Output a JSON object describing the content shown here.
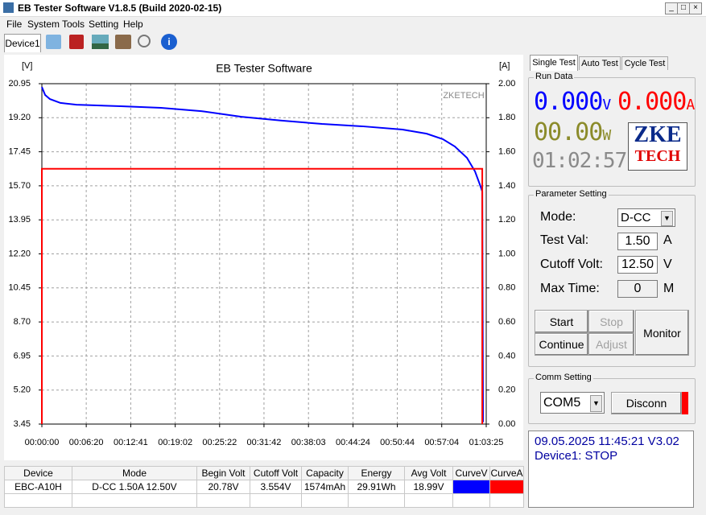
{
  "window": {
    "title": "EB Tester Software V1.8.5 (Build 2020-02-15)"
  },
  "menu": [
    "File",
    "System",
    "Tools",
    "Setting",
    "Help"
  ],
  "device_tab": "Device1",
  "chart_data": {
    "type": "line",
    "title": "EB Tester Software",
    "watermark": "ZKETECH",
    "y_label": "[V]",
    "y2_label": "[A]",
    "xlim": [
      0,
      3805
    ],
    "xticks": [
      {
        "value": 0,
        "label": "00:00:00"
      },
      {
        "value": 380,
        "label": "00:06:20"
      },
      {
        "value": 761,
        "label": "00:12:41"
      },
      {
        "value": 1142,
        "label": "00:19:02"
      },
      {
        "value": 1522,
        "label": "00:25:22"
      },
      {
        "value": 1902,
        "label": "00:31:42"
      },
      {
        "value": 2283,
        "label": "00:38:03"
      },
      {
        "value": 2664,
        "label": "00:44:24"
      },
      {
        "value": 3044,
        "label": "00:50:44"
      },
      {
        "value": 3424,
        "label": "00:57:04"
      },
      {
        "value": 3805,
        "label": "01:03:25"
      }
    ],
    "ylim": [
      3.45,
      20.95
    ],
    "yticks": [
      3.45,
      {
        "value": 5.2,
        "label": "5.20"
      },
      6.95,
      {
        "value": 8.7,
        "label": "8.70"
      },
      10.45,
      {
        "value": 12.2,
        "label": "12.20"
      },
      13.95,
      {
        "value": 15.7,
        "label": "15.70"
      },
      17.45,
      {
        "value": 19.2,
        "label": "19.20"
      },
      20.95
    ],
    "y2lim": [
      0,
      2
    ],
    "y2ticks": [
      {
        "value": 0,
        "label": "0.00"
      },
      {
        "value": 0.2,
        "label": "0.20"
      },
      {
        "value": 0.4,
        "label": "0.40"
      },
      {
        "value": 0.6,
        "label": "0.60"
      },
      {
        "value": 0.8,
        "label": "0.80"
      },
      {
        "value": 1,
        "label": "1.00"
      },
      {
        "value": 1.2,
        "label": "1.20"
      },
      {
        "value": 1.4,
        "label": "1.40"
      },
      {
        "value": 1.6,
        "label": "1.60"
      },
      {
        "value": 1.8,
        "label": "1.80"
      },
      {
        "value": 2,
        "label": "2.00"
      }
    ],
    "grid": true,
    "series": [
      {
        "color": "#0000ff",
        "x": [
          0,
          28,
          69,
          159,
          296,
          676,
          1020,
          1365,
          1709,
          2054,
          2399,
          2743,
          3088,
          3295,
          3433,
          3536,
          3640,
          3709,
          3757,
          3771,
          3778
        ],
        "values": [
          20.78,
          20.37,
          20.16,
          19.96,
          19.87,
          19.79,
          19.71,
          19.54,
          19.25,
          19.05,
          18.88,
          18.76,
          18.59,
          18.38,
          18.1,
          17.72,
          17.14,
          16.44,
          15.66,
          15.41,
          3.55
        ]
      },
      {
        "color": "#ff0000",
        "axis": "y2",
        "x": [
          0,
          0,
          3771,
          3771
        ],
        "values": [
          0,
          1.5,
          1.5,
          0
        ]
      }
    ]
  },
  "tabs": [
    "Single Test",
    "Auto Test",
    "Cycle Test"
  ],
  "run_data": {
    "title": "Run Data",
    "voltage": "0.000",
    "voltage_unit": "V",
    "current": "0.000",
    "current_unit": "A",
    "power": "00.00",
    "power_unit": "W",
    "time": "01:02:57",
    "logo": [
      "ZKE",
      "TECH"
    ]
  },
  "parameter_setting": {
    "title": "Parameter Setting",
    "mode_label": "Mode:",
    "mode": "D-CC",
    "test_val_label": "Test Val:",
    "test_val": "1.50",
    "test_val_unit": "A",
    "cutoff_label": "Cutoff Volt:",
    "cutoff": "12.50",
    "cutoff_unit": "V",
    "max_time_label": "Max Time:",
    "max_time": "0",
    "max_time_unit": "M",
    "buttons": [
      "Start",
      "Stop",
      "Monitor",
      "Continue",
      "Adjust"
    ]
  },
  "comm_setting": {
    "title": "Comm Setting",
    "port": "COM5",
    "button": "Disconn"
  },
  "status": {
    "line1": "09.05.2025 11:45:21 V3.02",
    "line2": "Device1: STOP"
  },
  "table": {
    "headers": [
      "Device",
      "Mode",
      "Begin Volt",
      "Cutoff Volt",
      "Capacity",
      "Energy",
      "Avg Volt",
      "CurveV",
      "CurveA"
    ],
    "rows": [
      [
        "EBC-A10H",
        "D-CC 1.50A 12.50V",
        "20.78V",
        "3.554V",
        "1574mAh",
        "29.91Wh",
        "18.99V"
      ]
    ]
  }
}
